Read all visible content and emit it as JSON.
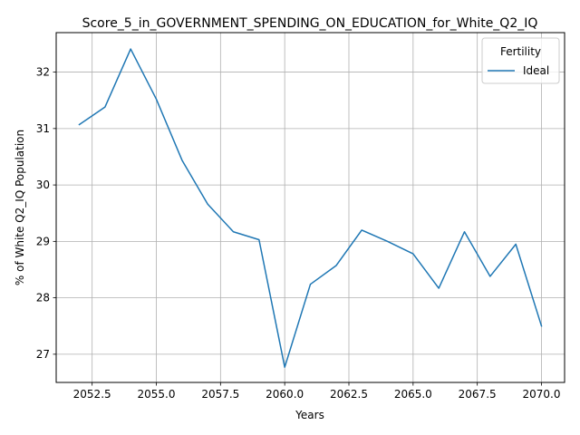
{
  "chart_data": {
    "type": "line",
    "title": "Score_5_in_GOVERNMENT_SPENDING_ON_EDUCATION_for_White_Q2_IQ",
    "xlabel": "Years",
    "ylabel": "% of White Q2_IQ Population",
    "xlim": [
      2051.1,
      2070.9
    ],
    "ylim": [
      26.5,
      32.7
    ],
    "xticks": [
      2052.5,
      2055.0,
      2057.5,
      2060.0,
      2062.5,
      2065.0,
      2067.5,
      2070.0
    ],
    "xtick_labels": [
      "2052.5",
      "2055.0",
      "2057.5",
      "2060.0",
      "2062.5",
      "2065.0",
      "2067.5",
      "2070.0"
    ],
    "yticks": [
      27,
      28,
      29,
      30,
      31,
      32
    ],
    "ytick_labels": [
      "27",
      "28",
      "29",
      "30",
      "31",
      "32"
    ],
    "grid": true,
    "legend": {
      "title": "Fertility",
      "placement": "top-right"
    },
    "series": [
      {
        "name": "Ideal",
        "color": "#1f77b4",
        "x": [
          2052,
          2053,
          2054,
          2055,
          2056,
          2057,
          2058,
          2059,
          2060,
          2061,
          2062,
          2063,
          2064,
          2065,
          2066,
          2067,
          2068,
          2069,
          2070
        ],
        "y": [
          31.07,
          31.38,
          32.41,
          31.52,
          30.44,
          29.66,
          29.17,
          29.03,
          26.77,
          28.24,
          28.57,
          29.2,
          29.0,
          28.78,
          28.17,
          29.17,
          28.38,
          28.95,
          27.5
        ]
      }
    ]
  }
}
